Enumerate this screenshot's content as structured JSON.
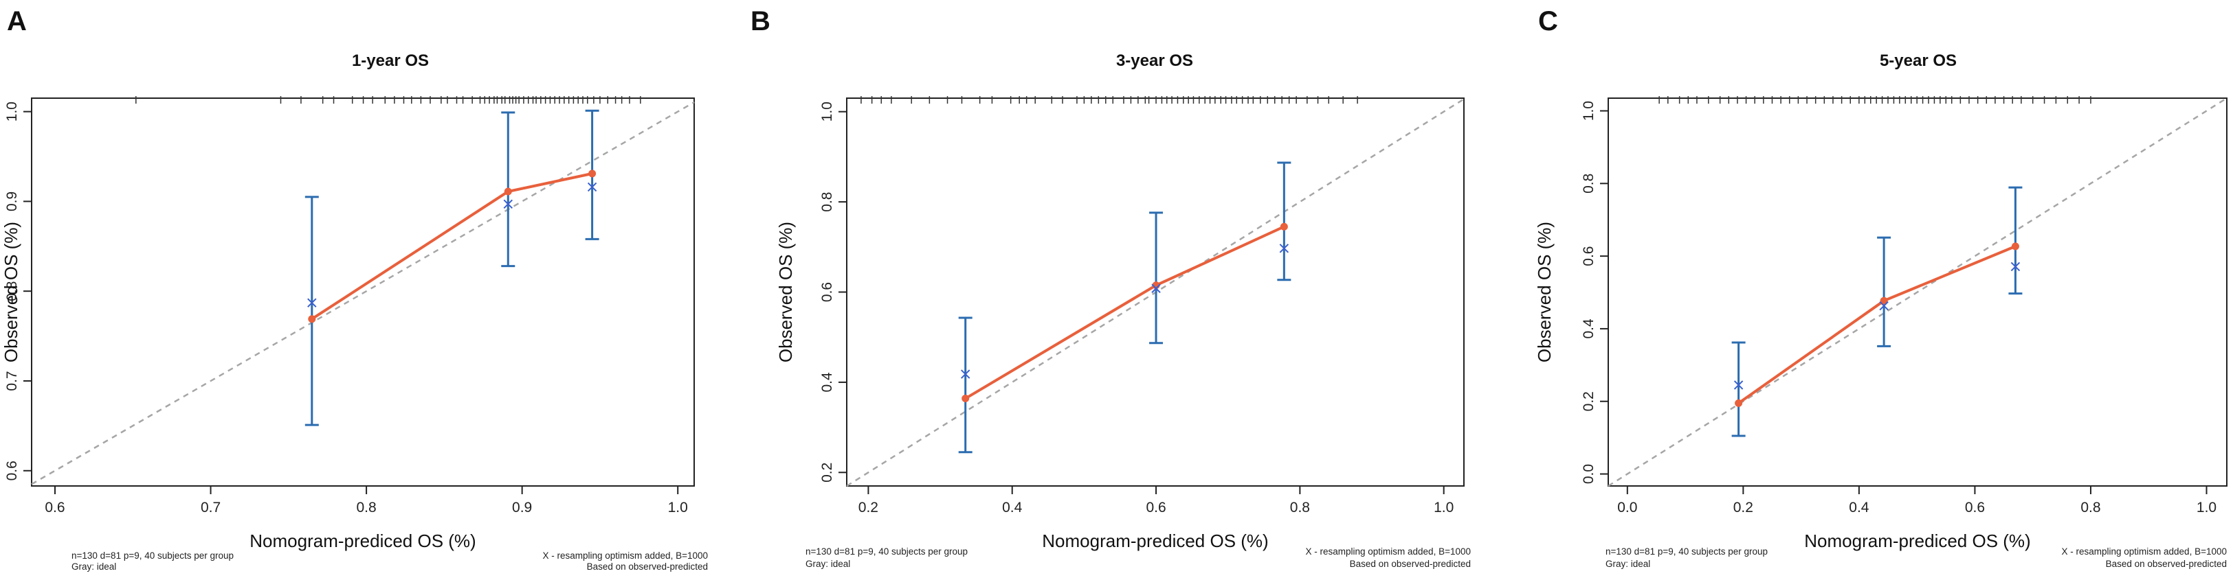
{
  "colors": {
    "line": "#e8603c",
    "errorbar": "#2b6cb0",
    "resampled": "#3a5fcd",
    "ideal": "#a6a6a6",
    "axis": "#222222",
    "rug": "#333333"
  },
  "chart_data": [
    {
      "type": "line",
      "panel_letter": "A",
      "title": "1-year OS",
      "xlabel": "Nomogram-prediced OS (%)",
      "ylabel": "Observed OS (%)",
      "xlim": [
        0.585,
        1.0105
      ],
      "ylim": [
        0.583,
        1.015
      ],
      "xticks": [
        "0.6",
        "0.7",
        "0.8",
        "0.9",
        "1.0"
      ],
      "yticks": [
        "0.6",
        "0.7",
        "0.8",
        "0.9",
        "1.0"
      ],
      "ideal_line": "diagonal y = x",
      "series": [
        {
          "name": "apparent",
          "x": [
            0.765,
            0.891,
            0.945
          ],
          "y": [
            0.769,
            0.911,
            0.931
          ]
        },
        {
          "name": "bias-corrected (X)",
          "x": [
            0.765,
            0.891,
            0.945
          ],
          "y": [
            0.787,
            0.897,
            0.916
          ]
        }
      ],
      "error_bars": [
        {
          "x": 0.765,
          "low": 0.651,
          "high": 0.905
        },
        {
          "x": 0.891,
          "low": 0.828,
          "high": 0.999
        },
        {
          "x": 0.945,
          "low": 0.858,
          "high": 1.001
        }
      ],
      "rug": [
        0.652,
        0.745,
        0.758,
        0.772,
        0.779,
        0.791,
        0.798,
        0.804,
        0.812,
        0.818,
        0.824,
        0.829,
        0.835,
        0.841,
        0.848,
        0.852,
        0.858,
        0.862,
        0.868,
        0.873,
        0.876,
        0.879,
        0.882,
        0.884,
        0.887,
        0.889,
        0.892,
        0.894,
        0.896,
        0.898,
        0.901,
        0.904,
        0.907,
        0.909,
        0.912,
        0.915,
        0.918,
        0.921,
        0.924,
        0.927,
        0.93,
        0.933,
        0.936,
        0.939,
        0.942,
        0.946,
        0.95,
        0.955,
        0.96,
        0.964,
        0.969,
        0.976
      ],
      "footnote_left": [
        "n=130 d=81 p=9, 40 subjects per group",
        "Gray: ideal"
      ],
      "footnote_right": [
        "X - resampling optimism added, B=1000",
        "Based on observed-predicted"
      ]
    },
    {
      "type": "line",
      "panel_letter": "B",
      "title": "3-year OS",
      "xlabel": "Nomogram-prediced OS (%)",
      "ylabel": "Observed OS (%)",
      "xlim": [
        0.17,
        1.028
      ],
      "ylim": [
        0.17,
        1.03
      ],
      "xticks": [
        "0.2",
        "0.4",
        "0.6",
        "0.8",
        "1.0"
      ],
      "yticks": [
        "0.2",
        "0.4",
        "0.6",
        "0.8",
        "1.0"
      ],
      "ideal_line": "diagonal y = x",
      "series": [
        {
          "name": "apparent",
          "x": [
            0.335,
            0.6,
            0.778
          ],
          "y": [
            0.364,
            0.615,
            0.745
          ]
        },
        {
          "name": "bias-corrected (X)",
          "x": [
            0.335,
            0.6,
            0.778
          ],
          "y": [
            0.418,
            0.608,
            0.697
          ]
        }
      ],
      "error_bars": [
        {
          "x": 0.335,
          "low": 0.245,
          "high": 0.543
        },
        {
          "x": 0.6,
          "low": 0.487,
          "high": 0.776
        },
        {
          "x": 0.778,
          "low": 0.627,
          "high": 0.887
        }
      ],
      "rug": [
        0.19,
        0.205,
        0.218,
        0.232,
        0.26,
        0.285,
        0.31,
        0.33,
        0.355,
        0.372,
        0.398,
        0.41,
        0.42,
        0.432,
        0.455,
        0.47,
        0.49,
        0.5,
        0.51,
        0.52,
        0.53,
        0.54,
        0.555,
        0.565,
        0.575,
        0.585,
        0.59,
        0.6,
        0.608,
        0.615,
        0.622,
        0.63,
        0.638,
        0.645,
        0.652,
        0.66,
        0.668,
        0.675,
        0.682,
        0.69,
        0.697,
        0.705,
        0.712,
        0.72,
        0.728,
        0.735,
        0.745,
        0.755,
        0.765,
        0.775,
        0.785,
        0.795,
        0.81,
        0.825,
        0.84,
        0.86,
        0.88
      ],
      "footnote_left": [
        "n=130 d=81 p=9, 40 subjects per group",
        "Gray: ideal"
      ],
      "footnote_right": [
        "X - resampling optimism added, B=1000",
        "Based on observed-predicted"
      ]
    },
    {
      "type": "line",
      "panel_letter": "C",
      "title": "5-year OS",
      "xlabel": "Nomogram-prediced OS (%)",
      "ylabel": "Observed OS (%)",
      "xlim": [
        -0.033,
        1.035
      ],
      "ylim": [
        -0.033,
        1.035
      ],
      "xticks": [
        "0.0",
        "0.2",
        "0.4",
        "0.6",
        "0.8",
        "1.0"
      ],
      "yticks": [
        "0.0",
        "0.2",
        "0.4",
        "0.6",
        "0.8",
        "1.0"
      ],
      "ideal_line": "diagonal y = x",
      "series": [
        {
          "name": "apparent",
          "x": [
            0.192,
            0.443,
            0.67
          ],
          "y": [
            0.195,
            0.477,
            0.627
          ]
        },
        {
          "name": "bias-corrected (X)",
          "x": [
            0.192,
            0.443,
            0.67
          ],
          "y": [
            0.245,
            0.463,
            0.571
          ]
        }
      ],
      "error_bars": [
        {
          "x": 0.192,
          "low": 0.105,
          "high": 0.362
        },
        {
          "x": 0.443,
          "low": 0.352,
          "high": 0.651
        },
        {
          "x": 0.67,
          "low": 0.497,
          "high": 0.789
        }
      ],
      "rug": [
        0.055,
        0.07,
        0.09,
        0.105,
        0.12,
        0.14,
        0.16,
        0.175,
        0.19,
        0.205,
        0.22,
        0.235,
        0.25,
        0.265,
        0.28,
        0.295,
        0.31,
        0.325,
        0.34,
        0.355,
        0.37,
        0.385,
        0.4,
        0.41,
        0.42,
        0.43,
        0.44,
        0.45,
        0.46,
        0.47,
        0.48,
        0.49,
        0.5,
        0.51,
        0.52,
        0.53,
        0.54,
        0.55,
        0.56,
        0.575,
        0.59,
        0.605,
        0.62,
        0.635,
        0.65,
        0.665,
        0.68,
        0.7,
        0.72,
        0.74,
        0.76,
        0.78,
        0.8
      ],
      "footnote_left": [
        "n=130 d=81 p=9, 40 subjects per group",
        "Gray: ideal"
      ],
      "footnote_right": [
        "X - resampling optimism added, B=1000",
        "Based on observed-predicted"
      ]
    }
  ]
}
